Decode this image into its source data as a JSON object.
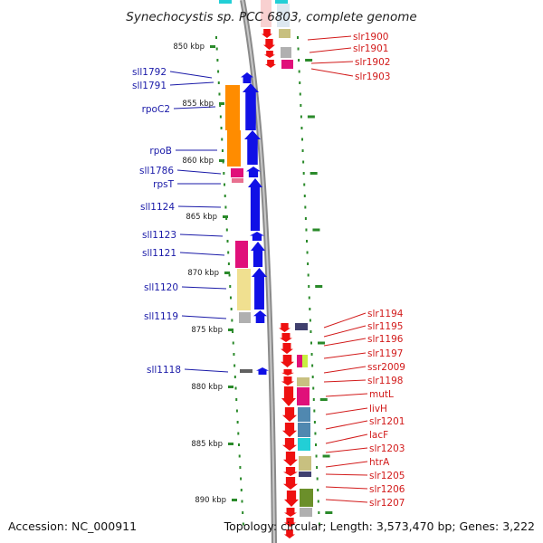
{
  "title": "Synechocystis sp. PCC 6803, complete genome",
  "accession_text": "Accession: NC_000911",
  "topology_text": "Topology: circular; Length: 3,573,470 bp; Genes: 3,222",
  "colors": {
    "minus_strand": "#1010e6",
    "plus_strand": "#ee1010",
    "left_label": "#1a1aa8",
    "right_label": "#d21a1a",
    "tick": "#2a8a2a",
    "backbone": "#8a8a8a"
  },
  "scale_labels": [
    {
      "kbp": 850,
      "label": "850 kbp"
    },
    {
      "kbp": 855,
      "label": "855 kbp"
    },
    {
      "kbp": 860,
      "label": "860 kbp"
    },
    {
      "kbp": 865,
      "label": "865 kbp"
    },
    {
      "kbp": 870,
      "label": "870 kbp"
    },
    {
      "kbp": 875,
      "label": "875 kbp"
    },
    {
      "kbp": 880,
      "label": "880 kbp"
    },
    {
      "kbp": 885,
      "label": "885 kbp"
    },
    {
      "kbp": 890,
      "label": "890 kbp"
    }
  ],
  "left_genes": [
    {
      "label": "sll1792"
    },
    {
      "label": "sll1791"
    },
    {
      "label": "rpoC2"
    },
    {
      "label": "rpoB"
    },
    {
      "label": "sll1786"
    },
    {
      "label": "rpsT"
    },
    {
      "label": "sll1124"
    },
    {
      "label": "sll1123"
    },
    {
      "label": "sll1121"
    },
    {
      "label": "sll1120"
    },
    {
      "label": "sll1119"
    },
    {
      "label": "sll1118"
    }
  ],
  "right_genes": [
    {
      "label": "slr1900"
    },
    {
      "label": "slr1901"
    },
    {
      "label": "slr1902"
    },
    {
      "label": "slr1903"
    },
    {
      "label": "slr1194"
    },
    {
      "label": "slr1195"
    },
    {
      "label": "slr1196"
    },
    {
      "label": "slr1197"
    },
    {
      "label": "ssr2009"
    },
    {
      "label": "slr1198"
    },
    {
      "label": "mutL"
    },
    {
      "label": "livH"
    },
    {
      "label": "slr1201"
    },
    {
      "label": "lacF"
    },
    {
      "label": "slr1203"
    },
    {
      "label": "htrA"
    },
    {
      "label": "slr1205"
    },
    {
      "label": "slr1206"
    },
    {
      "label": "slr1207"
    }
  ]
}
